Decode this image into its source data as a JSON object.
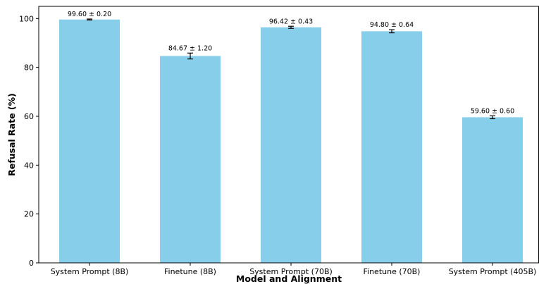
{
  "chart_data": {
    "type": "bar",
    "categories": [
      "System Prompt (8B)",
      "Finetune (8B)",
      "System Prompt (70B)",
      "Finetune (70B)",
      "System Prompt (405B)"
    ],
    "values": [
      99.6,
      84.67,
      96.42,
      94.8,
      59.6
    ],
    "errors": [
      0.2,
      1.2,
      0.43,
      0.64,
      0.6
    ],
    "data_labels": [
      "99.60 ± 0.20",
      "84.67 ± 1.20",
      "96.42 ± 0.43",
      "94.80 ± 0.64",
      "59.60 ± 0.60"
    ],
    "xlabel": "Model and Alignment",
    "ylabel": "Refusal Rate (%)",
    "ylim": [
      0,
      105
    ],
    "yticks": [
      0,
      20,
      40,
      60,
      80,
      100
    ],
    "grid": false,
    "colors": {
      "bar": "#87CEEB",
      "error_bar": "#000000"
    }
  }
}
